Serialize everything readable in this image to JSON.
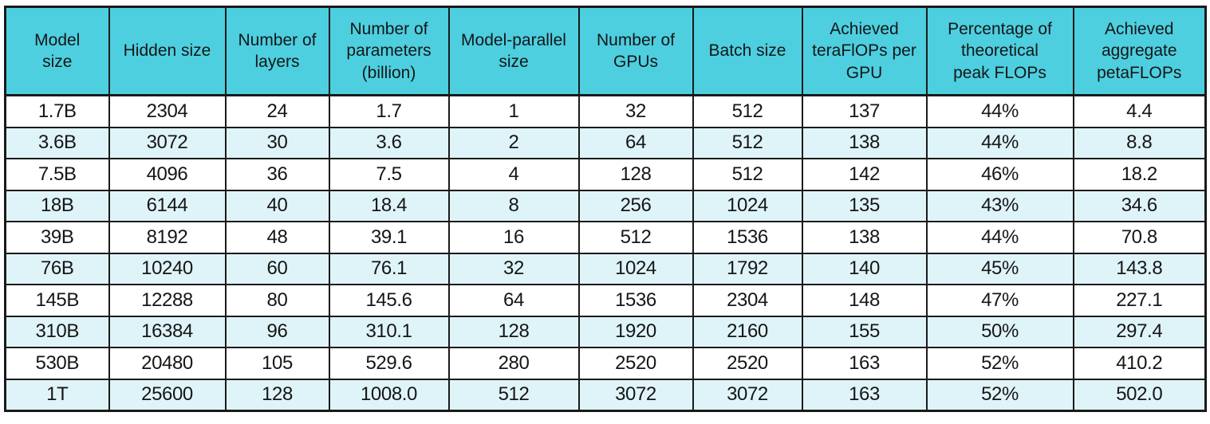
{
  "colors": {
    "header_bg": "#4dcfe0",
    "row_alt_bg": "#dff4f9",
    "row_bg": "#ffffff",
    "border": "#1a1a1a",
    "text": "#161616"
  },
  "header": {
    "labels": [
      "Model\nsize",
      "Hidden size",
      "Number of\nlayers",
      "Number of\nparameters\n(billion)",
      "Model-parallel\nsize",
      "Number of\nGPUs",
      "Batch size",
      "Achieved\nteraFlOPs per\nGPU",
      "Percentage of\ntheoretical\npeak FLOPs",
      "Achieved\naggregate\npetaFLOPs"
    ]
  },
  "chart_data": {
    "type": "table",
    "title": "",
    "columns": [
      "Model size",
      "Hidden size",
      "Number of layers",
      "Number of parameters (billion)",
      "Model-parallel size",
      "Number of GPUs",
      "Batch size",
      "Achieved teraFlOPs per GPU",
      "Percentage of theoretical peak FLOPs",
      "Achieved aggregate petaFLOPs"
    ],
    "rows": [
      [
        "1.7B",
        "2304",
        "24",
        "1.7",
        "1",
        "32",
        "512",
        "137",
        "44%",
        "4.4"
      ],
      [
        "3.6B",
        "3072",
        "30",
        "3.6",
        "2",
        "64",
        "512",
        "138",
        "44%",
        "8.8"
      ],
      [
        "7.5B",
        "4096",
        "36",
        "7.5",
        "4",
        "128",
        "512",
        "142",
        "46%",
        "18.2"
      ],
      [
        "18B",
        "6144",
        "40",
        "18.4",
        "8",
        "256",
        "1024",
        "135",
        "43%",
        "34.6"
      ],
      [
        "39B",
        "8192",
        "48",
        "39.1",
        "16",
        "512",
        "1536",
        "138",
        "44%",
        "70.8"
      ],
      [
        "76B",
        "10240",
        "60",
        "76.1",
        "32",
        "1024",
        "1792",
        "140",
        "45%",
        "143.8"
      ],
      [
        "145B",
        "12288",
        "80",
        "145.6",
        "64",
        "1536",
        "2304",
        "148",
        "47%",
        "227.1"
      ],
      [
        "310B",
        "16384",
        "96",
        "310.1",
        "128",
        "1920",
        "2160",
        "155",
        "50%",
        "297.4"
      ],
      [
        "530B",
        "20480",
        "105",
        "529.6",
        "280",
        "2520",
        "2520",
        "163",
        "52%",
        "410.2"
      ],
      [
        "1T",
        "25600",
        "128",
        "1008.0",
        "512",
        "3072",
        "3072",
        "163",
        "52%",
        "502.0"
      ]
    ],
    "layout": {
      "grid": true,
      "striped_rows": true,
      "header_position": "top"
    }
  }
}
